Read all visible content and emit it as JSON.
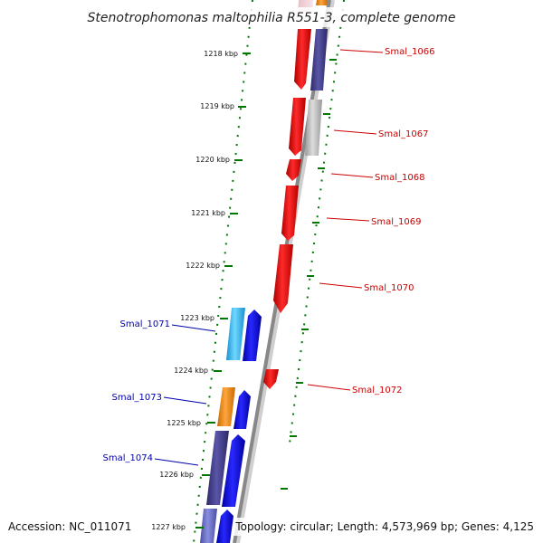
{
  "title": "Stenotrophomonas maltophilia R551-3, complete genome",
  "footer": {
    "accession": "Accession: NC_011071",
    "summary": "Topology: circular; Length: 4,573,969 bp; Genes: 4,125"
  },
  "colors": {
    "forward_label": "#cc0000",
    "reverse_label": "#0000aa",
    "tick": "#007700",
    "backbone": "#888888"
  },
  "scale_ticks": [
    {
      "label": "1218 kbp"
    },
    {
      "label": "1219 kbp"
    },
    {
      "label": "1220 kbp"
    },
    {
      "label": "1221 kbp"
    },
    {
      "label": "1222 kbp"
    },
    {
      "label": "1223 kbp"
    },
    {
      "label": "1224 kbp"
    },
    {
      "label": "1225 kbp"
    },
    {
      "label": "1226 kbp"
    },
    {
      "label": "1227 kbp"
    }
  ],
  "gene_labels": [
    {
      "label": "Smal_1066",
      "strand": "forward"
    },
    {
      "label": "Smal_1067",
      "strand": "forward"
    },
    {
      "label": "Smal_1068",
      "strand": "forward"
    },
    {
      "label": "Smal_1069",
      "strand": "forward"
    },
    {
      "label": "Smal_1070",
      "strand": "forward"
    },
    {
      "label": "Smal_1072",
      "strand": "forward"
    },
    {
      "label": "Smal_1071",
      "strand": "reverse"
    },
    {
      "label": "Smal_1073",
      "strand": "reverse"
    },
    {
      "label": "Smal_1074",
      "strand": "reverse"
    }
  ]
}
